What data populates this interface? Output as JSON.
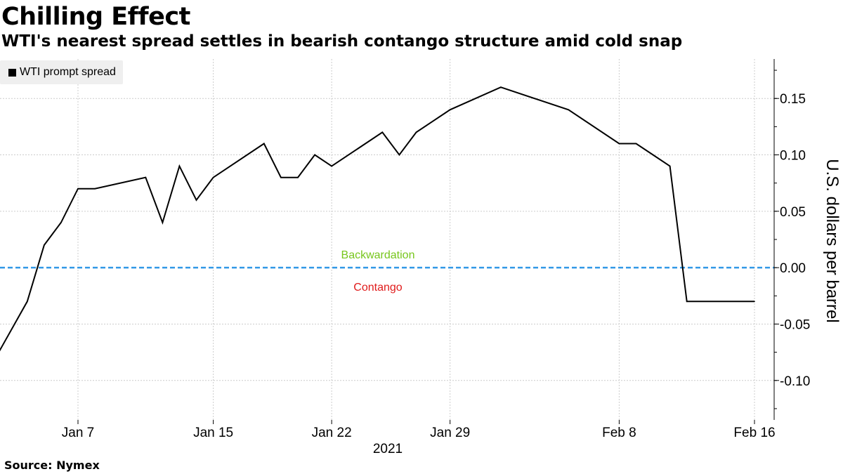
{
  "title": "Chilling Effect",
  "subtitle": "WTI's nearest spread settles in bearish contango structure amid cold snap",
  "source": "Source: Nymex",
  "colors": {
    "series": "#000000",
    "zero_line": "#3399e6",
    "backwardation": "#77c61c",
    "contango": "#e01b1b",
    "grid": "#cccccc"
  },
  "chart_data": {
    "type": "line",
    "title": "Chilling Effect",
    "subtitle": "WTI's nearest spread settles in bearish contango structure amid cold snap",
    "ylabel": "U.S. dollars per barrel",
    "xlabel": "",
    "year_label": "2021",
    "ylim": [
      -0.135,
      0.185
    ],
    "y_ticks": [
      -0.1,
      -0.05,
      0.0,
      0.05,
      0.1,
      0.15
    ],
    "y_tick_labels": [
      "-0.10",
      "-0.05",
      "0.00",
      "0.05",
      "0.10",
      "0.15"
    ],
    "x_ticks": [
      "2021-01-07",
      "2021-01-15",
      "2021-01-22",
      "2021-01-29",
      "2021-02-08",
      "2021-02-16"
    ],
    "x_tick_labels": [
      "Jan 7",
      "Jan 15",
      "Jan 22",
      "Jan 29",
      "Feb 8",
      "Feb 16"
    ],
    "legend": {
      "position": "top-left",
      "entries": [
        "WTI prompt spread"
      ]
    },
    "grid": true,
    "annotations": [
      {
        "text": "Backwardation",
        "y": 0.0,
        "side": "above",
        "color": "#77c61c"
      },
      {
        "text": "Contango",
        "y": 0.0,
        "side": "below",
        "color": "#e01b1b"
      }
    ],
    "series": [
      {
        "name": "WTI prompt spread",
        "x": [
          "2021-01-01",
          "2021-01-04",
          "2021-01-05",
          "2021-01-06",
          "2021-01-07",
          "2021-01-08",
          "2021-01-11",
          "2021-01-12",
          "2021-01-13",
          "2021-01-14",
          "2021-01-15",
          "2021-01-18",
          "2021-01-19",
          "2021-01-20",
          "2021-01-21",
          "2021-01-22",
          "2021-01-25",
          "2021-01-26",
          "2021-01-27",
          "2021-01-28",
          "2021-01-29",
          "2021-02-01",
          "2021-02-05",
          "2021-02-08",
          "2021-02-09",
          "2021-02-10",
          "2021-02-11",
          "2021-02-12",
          "2021-02-16"
        ],
        "values": [
          -0.11,
          -0.03,
          0.02,
          0.04,
          0.07,
          0.07,
          0.08,
          0.04,
          0.09,
          0.06,
          0.08,
          0.11,
          0.08,
          0.08,
          0.1,
          0.09,
          0.12,
          0.1,
          0.12,
          0.13,
          0.14,
          0.16,
          0.14,
          0.11,
          0.11,
          0.1,
          0.09,
          -0.03,
          -0.03
        ]
      }
    ]
  }
}
